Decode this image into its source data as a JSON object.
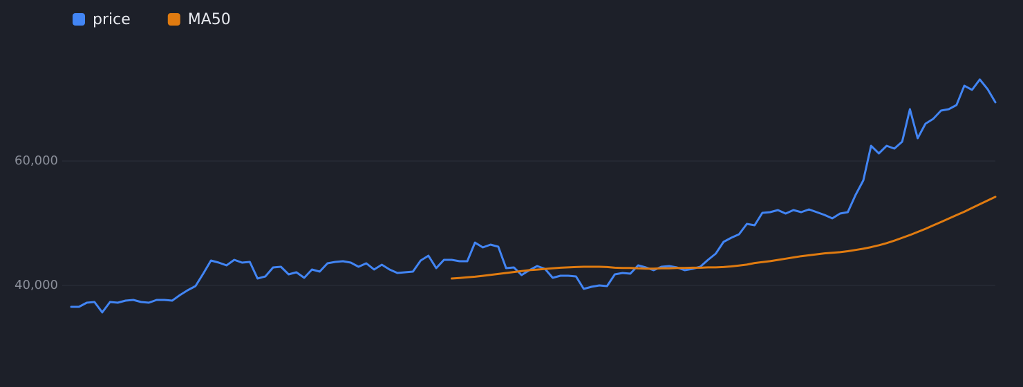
{
  "chart_data": {
    "type": "line",
    "series": [
      {
        "name": "price",
        "color": "#4285f4",
        "values": [
          36556,
          36556,
          37222,
          37333,
          35667,
          37333,
          37222,
          37556,
          37667,
          37333,
          37222,
          37667,
          37667,
          37556,
          38444,
          39222,
          39889,
          41889,
          44000,
          43667,
          43222,
          44111,
          43667,
          43778,
          41111,
          41444,
          42889,
          43000,
          41778,
          42111,
          41222,
          42556,
          42222,
          43556,
          43778,
          43889,
          43667,
          43000,
          43556,
          42556,
          43333,
          42556,
          42000,
          42111,
          42222,
          44000,
          44778,
          42778,
          44111,
          44111,
          43889,
          43889,
          46889,
          46111,
          46556,
          46222,
          42778,
          42889,
          41667,
          42444,
          43111,
          42667,
          41222,
          41556,
          41556,
          41444,
          39444,
          39778,
          40000,
          39889,
          41778,
          42000,
          41889,
          43222,
          42889,
          42444,
          43000,
          43111,
          42889,
          42444,
          42667,
          43000,
          44111,
          45111,
          47000,
          47667,
          48222,
          49889,
          49667,
          51667,
          51778,
          52111,
          51556,
          52111,
          51778,
          52222,
          51778,
          51333,
          50778,
          51556,
          51778,
          54556,
          56889,
          62444,
          61222,
          62444,
          62000,
          63111,
          68333,
          63667,
          66000,
          66778,
          68111,
          68333,
          69000,
          72111,
          71444,
          73111,
          71556,
          69444
        ]
      },
      {
        "name": "MA50",
        "color": "#e07b10",
        "values": [
          null,
          null,
          null,
          null,
          null,
          null,
          null,
          null,
          null,
          null,
          null,
          null,
          null,
          null,
          null,
          null,
          null,
          null,
          null,
          null,
          null,
          null,
          null,
          null,
          null,
          null,
          null,
          null,
          null,
          null,
          null,
          null,
          null,
          null,
          null,
          null,
          null,
          null,
          null,
          null,
          null,
          null,
          null,
          null,
          null,
          null,
          null,
          null,
          null,
          41111,
          41200,
          41300,
          41400,
          41550,
          41700,
          41850,
          42000,
          42150,
          42300,
          42450,
          42550,
          42650,
          42750,
          42850,
          42900,
          42950,
          43000,
          43000,
          43000,
          42950,
          42850,
          42800,
          42800,
          42750,
          42700,
          42700,
          42750,
          42750,
          42800,
          42800,
          42850,
          42850,
          42900,
          42900,
          42950,
          43050,
          43200,
          43350,
          43600,
          43750,
          43900,
          44100,
          44300,
          44500,
          44700,
          44850,
          45000,
          45150,
          45250,
          45350,
          45500,
          45700,
          45900,
          46150,
          46450,
          46800,
          47200,
          47650,
          48100,
          48600,
          49100,
          49650,
          50200,
          50750,
          51300,
          51850,
          52450,
          53050,
          53650,
          54250
        ]
      }
    ],
    "ylim": [
      24000,
      80000
    ],
    "yticks": [
      {
        "value": 40000,
        "label": "40,000"
      },
      {
        "value": 60000,
        "label": "60,000"
      }
    ],
    "grid": true,
    "legend": "top-left"
  }
}
